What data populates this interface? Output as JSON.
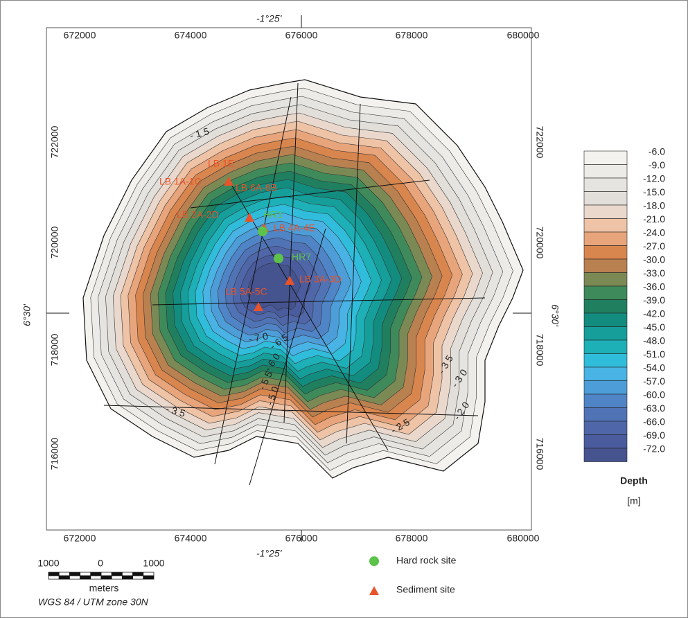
{
  "map": {
    "top_axis": {
      "ticks": [
        "672000",
        "674000",
        "676000",
        "678000",
        "680000"
      ],
      "center_label": "-1°25'"
    },
    "bottom_axis": {
      "ticks": [
        "672000",
        "674000",
        "676000",
        "678000",
        "680000"
      ],
      "center_label": "-1°25'"
    },
    "left_axis": {
      "ticks": [
        "722000",
        "720000",
        "718000",
        "716000"
      ],
      "center_label": "6°30'"
    },
    "right_axis": {
      "ticks": [
        "722000",
        "720000",
        "718000",
        "716000"
      ],
      "center_label": "6°30'"
    },
    "contour_labels": [
      "-15",
      "-70",
      "-65",
      "-60",
      "-55",
      "-50",
      "-35",
      "-35",
      "-30",
      "-25",
      "-20"
    ],
    "sediment_sites": [
      "LB 1E",
      "LB 1A-1C",
      "LB 6A-6B",
      "LB 2A-2D",
      "LB 4A-4E",
      "LB 3A-3D",
      "LB 5A-5C"
    ],
    "hard_rock_sites": [
      "HR1",
      "HR7"
    ]
  },
  "depth_legend": {
    "levels": [
      "-6.0",
      "-9.0",
      "-12.0",
      "-15.0",
      "-18.0",
      "-21.0",
      "-24.0",
      "-27.0",
      "-30.0",
      "-33.0",
      "-36.0",
      "-39.0",
      "-42.0",
      "-45.0",
      "-48.0",
      "-51.0",
      "-54.0",
      "-57.0",
      "-60.0",
      "-63.0",
      "-66.0",
      "-69.0",
      "-72.0"
    ],
    "title": "Depth",
    "unit": "[m]"
  },
  "site_legend": {
    "items": [
      "Hard rock site",
      "Sediment site"
    ]
  },
  "scale_bar": {
    "labels": [
      "1000",
      "0",
      "1000"
    ],
    "unit": "meters",
    "projection": "WGS 84 / UTM zone 30N"
  }
}
